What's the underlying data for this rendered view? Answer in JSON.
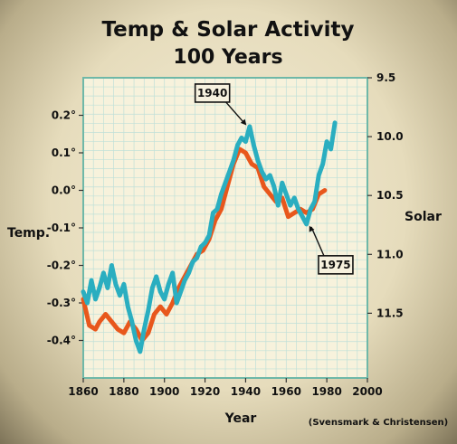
{
  "chart_data": {
    "type": "line",
    "title": "Temp & Solar Activity",
    "subtitle": "100 Years",
    "xlabel": "Year",
    "ylabel_left": "Temp.",
    "ylabel_right": "Solar",
    "credit": "(Svensmark & Christensen)",
    "xlim": [
      1860,
      2000
    ],
    "ylim_left": [
      -0.5,
      0.3
    ],
    "ylim_right": [
      12.05,
      9.5
    ],
    "x_ticks": [
      "1860",
      "1880",
      "1900",
      "1920",
      "1940",
      "1960",
      "1980",
      "2000"
    ],
    "left_ticks": [
      {
        "value": 0.2,
        "label": "0.2°"
      },
      {
        "value": 0.1,
        "label": "0.1°"
      },
      {
        "value": 0.0,
        "label": "0.0°"
      },
      {
        "value": -0.1,
        "label": "-0.1°"
      },
      {
        "value": -0.2,
        "label": "-0.2°"
      },
      {
        "value": -0.3,
        "label": "-0.3°"
      },
      {
        "value": -0.4,
        "label": "-0.4°"
      }
    ],
    "right_ticks": [
      {
        "value": 9.5,
        "label": "9.5"
      },
      {
        "value": 10.0,
        "label": "10.0"
      },
      {
        "value": 10.5,
        "label": "10.5"
      },
      {
        "value": 11.0,
        "label": "11.0"
      },
      {
        "value": 11.5,
        "label": "11.5"
      }
    ],
    "grid": true,
    "annotations": [
      {
        "label": "1940",
        "x": 1941,
        "y": 0.17
      },
      {
        "label": "1975",
        "x": 1971,
        "y": -0.09
      }
    ],
    "series": [
      {
        "axis": "left",
        "color": "#e8571c",
        "points": [
          [
            1860,
            -0.29
          ],
          [
            1863,
            -0.36
          ],
          [
            1866,
            -0.37
          ],
          [
            1868,
            -0.35
          ],
          [
            1871,
            -0.33
          ],
          [
            1874,
            -0.35
          ],
          [
            1877,
            -0.37
          ],
          [
            1880,
            -0.38
          ],
          [
            1883,
            -0.35
          ],
          [
            1886,
            -0.37
          ],
          [
            1889,
            -0.4
          ],
          [
            1892,
            -0.38
          ],
          [
            1895,
            -0.33
          ],
          [
            1898,
            -0.31
          ],
          [
            1901,
            -0.33
          ],
          [
            1904,
            -0.3
          ],
          [
            1907,
            -0.26
          ],
          [
            1910,
            -0.23
          ],
          [
            1913,
            -0.2
          ],
          [
            1916,
            -0.17
          ],
          [
            1919,
            -0.16
          ],
          [
            1922,
            -0.13
          ],
          [
            1925,
            -0.08
          ],
          [
            1928,
            -0.05
          ],
          [
            1931,
            0.01
          ],
          [
            1934,
            0.07
          ],
          [
            1937,
            0.11
          ],
          [
            1940,
            0.1
          ],
          [
            1943,
            0.07
          ],
          [
            1946,
            0.06
          ],
          [
            1949,
            0.01
          ],
          [
            1952,
            -0.01
          ],
          [
            1955,
            -0.03
          ],
          [
            1958,
            -0.02
          ],
          [
            1961,
            -0.07
          ],
          [
            1964,
            -0.06
          ],
          [
            1967,
            -0.05
          ],
          [
            1970,
            -0.06
          ],
          [
            1973,
            -0.05
          ],
          [
            1976,
            -0.01
          ],
          [
            1979,
            0.0
          ]
        ]
      },
      {
        "axis": "left",
        "color": "#2aaec0",
        "points": [
          [
            1860,
            -0.27
          ],
          [
            1862,
            -0.3
          ],
          [
            1864,
            -0.24
          ],
          [
            1866,
            -0.29
          ],
          [
            1868,
            -0.26
          ],
          [
            1870,
            -0.22
          ],
          [
            1872,
            -0.26
          ],
          [
            1874,
            -0.2
          ],
          [
            1876,
            -0.25
          ],
          [
            1878,
            -0.28
          ],
          [
            1880,
            -0.25
          ],
          [
            1882,
            -0.31
          ],
          [
            1884,
            -0.35
          ],
          [
            1886,
            -0.4
          ],
          [
            1888,
            -0.43
          ],
          [
            1890,
            -0.37
          ],
          [
            1892,
            -0.32
          ],
          [
            1894,
            -0.26
          ],
          [
            1896,
            -0.23
          ],
          [
            1898,
            -0.27
          ],
          [
            1900,
            -0.29
          ],
          [
            1902,
            -0.25
          ],
          [
            1904,
            -0.22
          ],
          [
            1906,
            -0.3
          ],
          [
            1908,
            -0.27
          ],
          [
            1910,
            -0.24
          ],
          [
            1912,
            -0.22
          ],
          [
            1914,
            -0.19
          ],
          [
            1916,
            -0.18
          ],
          [
            1918,
            -0.15
          ],
          [
            1920,
            -0.14
          ],
          [
            1922,
            -0.12
          ],
          [
            1924,
            -0.06
          ],
          [
            1926,
            -0.05
          ],
          [
            1928,
            -0.01
          ],
          [
            1930,
            0.02
          ],
          [
            1932,
            0.05
          ],
          [
            1934,
            0.08
          ],
          [
            1936,
            0.12
          ],
          [
            1938,
            0.14
          ],
          [
            1940,
            0.13
          ],
          [
            1942,
            0.17
          ],
          [
            1944,
            0.12
          ],
          [
            1946,
            0.08
          ],
          [
            1948,
            0.05
          ],
          [
            1950,
            0.03
          ],
          [
            1952,
            0.04
          ],
          [
            1954,
            0.01
          ],
          [
            1956,
            -0.04
          ],
          [
            1958,
            0.02
          ],
          [
            1960,
            -0.01
          ],
          [
            1962,
            -0.04
          ],
          [
            1964,
            -0.02
          ],
          [
            1966,
            -0.05
          ],
          [
            1968,
            -0.07
          ],
          [
            1970,
            -0.09
          ],
          [
            1972,
            -0.05
          ],
          [
            1974,
            -0.03
          ],
          [
            1976,
            0.04
          ],
          [
            1978,
            0.07
          ],
          [
            1980,
            0.13
          ],
          [
            1982,
            0.11
          ],
          [
            1984,
            0.18
          ]
        ]
      }
    ]
  }
}
